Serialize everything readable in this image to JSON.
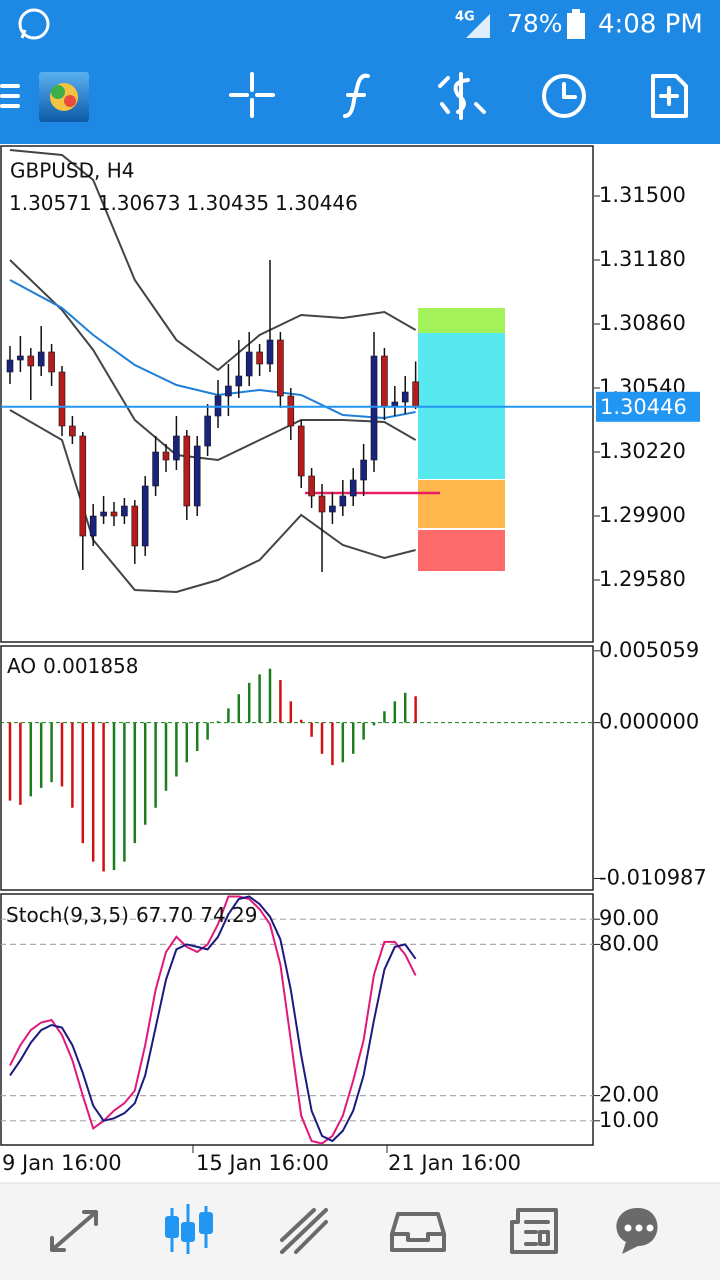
{
  "status_bar": {
    "network": "4G",
    "battery": "78%",
    "time": "4:08 PM"
  },
  "chart_data": [
    {
      "type": "candlestick",
      "title": "GBPUSD, H4",
      "ohlc_labels": [
        1.30571,
        1.30673,
        1.30435,
        1.30446
      ],
      "open": [
        1.3062,
        1.3068,
        1.307,
        1.3065,
        1.3072,
        1.3062,
        1.3035,
        1.303,
        1.298,
        1.299,
        1.2992,
        1.299,
        1.2995,
        1.2975,
        1.3005,
        1.3022,
        1.3018,
        1.303,
        1.2995,
        1.3025,
        1.304,
        1.305,
        1.3055,
        1.306,
        1.3072,
        1.3066,
        1.3078,
        1.305,
        1.3035,
        1.301,
        1.3,
        1.2992,
        1.2995,
        1.3,
        1.3008,
        1.3018,
        1.307,
        1.3045,
        1.3047,
        1.30571
      ],
      "high": [
        1.3075,
        1.308,
        1.3074,
        1.3085,
        1.3076,
        1.3065,
        1.304,
        1.3032,
        1.2996,
        1.3,
        1.2997,
        1.2999,
        1.2998,
        1.301,
        1.303,
        1.3026,
        1.304,
        1.3033,
        1.303,
        1.3046,
        1.3058,
        1.3066,
        1.3078,
        1.3082,
        1.3076,
        1.3118,
        1.3082,
        1.3054,
        1.3038,
        1.3014,
        1.3006,
        1.3002,
        1.3008,
        1.3014,
        1.3026,
        1.3082,
        1.3074,
        1.3055,
        1.306,
        1.30673
      ],
      "low": [
        1.3056,
        1.3062,
        1.3048,
        1.306,
        1.3055,
        1.303,
        1.3026,
        1.2963,
        1.2975,
        1.2986,
        1.2985,
        1.2986,
        1.2966,
        1.297,
        1.3,
        1.3012,
        1.3013,
        1.2988,
        1.299,
        1.302,
        1.3034,
        1.304,
        1.3049,
        1.3055,
        1.306,
        1.3062,
        1.3044,
        1.3028,
        1.3004,
        1.2994,
        1.2962,
        1.2986,
        1.299,
        1.2995,
        1.3,
        1.3012,
        1.3038,
        1.304,
        1.3041,
        1.30435
      ],
      "close": [
        1.3068,
        1.307,
        1.3065,
        1.3072,
        1.3062,
        1.3035,
        1.303,
        1.298,
        1.299,
        1.2992,
        1.299,
        1.2995,
        1.2975,
        1.3005,
        1.3022,
        1.3018,
        1.303,
        1.2995,
        1.3025,
        1.304,
        1.305,
        1.3055,
        1.306,
        1.3072,
        1.3066,
        1.3078,
        1.305,
        1.3035,
        1.301,
        1.3,
        1.2992,
        1.2995,
        1.3,
        1.3008,
        1.3018,
        1.307,
        1.3045,
        1.3047,
        1.3052,
        1.30446
      ],
      "up_color": "#1a237e",
      "down_color": "#b71c1c",
      "wick_color": "#111111",
      "series": [
        {
          "color": "#444444",
          "x": [
            0,
            5,
            8,
            12,
            16,
            20,
            24,
            28,
            32,
            36,
            39
          ],
          "values": [
            1.3173,
            1.31705,
            1.3158,
            1.3108,
            1.3078,
            1.3063,
            1.30805,
            1.30905,
            1.3089,
            1.3092,
            1.3083
          ]
        },
        {
          "color": "#444444",
          "x": [
            0,
            5,
            8,
            12,
            16,
            20,
            24,
            28,
            32,
            36,
            39
          ],
          "values": [
            1.3118,
            1.3093,
            1.3073,
            1.3038,
            1.30205,
            1.3018,
            1.3028,
            1.3038,
            1.3038,
            1.3037,
            1.3028
          ]
        },
        {
          "color": "#444444",
          "x": [
            0,
            5,
            8,
            12,
            16,
            20,
            24,
            28,
            32,
            36,
            39
          ],
          "values": [
            1.3043,
            1.3028,
            1.2978,
            1.2953,
            1.2952,
            1.2958,
            1.2968,
            1.29905,
            1.29755,
            1.2969,
            1.2973
          ]
        },
        {
          "color": "#1e7fd8",
          "x": [
            0,
            5,
            8,
            12,
            16,
            20,
            24,
            28,
            32,
            36,
            39
          ],
          "values": [
            1.3108,
            1.3094,
            1.30805,
            1.30655,
            1.30555,
            1.30505,
            1.3053,
            1.30505,
            1.30405,
            1.3039,
            1.3042
          ]
        }
      ],
      "current_price": 1.30446,
      "current_color": "#2196f3",
      "xlim": [
        -0.96,
        56.15
      ],
      "ylim": [
        1.2927,
        1.3175
      ],
      "yticks": [
        {
          "value": 1.315,
          "label": "1.31500"
        },
        {
          "value": 1.3118,
          "label": "1.31180"
        },
        {
          "value": 1.3086,
          "label": "1.30860"
        },
        {
          "value": 1.3054,
          "label": "1.30540"
        },
        {
          "value": 1.3022,
          "label": "1.30220"
        },
        {
          "value": 1.299,
          "label": "1.29900"
        },
        {
          "value": 1.2958,
          "label": "1.29580"
        }
      ],
      "grid": false
    },
    {
      "type": "bar",
      "title": "AO",
      "current": 0.001858,
      "values": [
        -0.0055,
        -0.0058,
        -0.0052,
        -0.0046,
        -0.0042,
        -0.0045,
        -0.006,
        -0.0085,
        -0.0098,
        -0.0105,
        -0.0104,
        -0.0098,
        -0.0085,
        -0.0072,
        -0.006,
        -0.0048,
        -0.0038,
        -0.0028,
        -0.002,
        -0.0012,
        0.0001,
        0.001,
        0.002,
        0.0028,
        0.0034,
        0.0038,
        0.003,
        0.0015,
        0.0002,
        -0.001,
        -0.0022,
        -0.003,
        -0.0028,
        -0.0022,
        -0.0012,
        -0.0002,
        0.0008,
        0.0015,
        0.0021,
        0.001858
      ],
      "up_color": "#1b7d1b",
      "down_color": "#d01010",
      "xlim": [
        -0.96,
        56.15
      ],
      "ylim": [
        -0.0118,
        0.0054
      ],
      "yticks": [
        0.005059,
        {
          "value": 0,
          "label": "0.000000"
        },
        -0.010987
      ],
      "zero_line": true,
      "grid": false
    },
    {
      "type": "line",
      "title": "Stoch(9,3,5)",
      "current_labels": [
        {
          "value": 67.7,
          "label": "67.70"
        },
        74.29
      ],
      "series": [
        {
          "color": "#e0187a",
          "values": [
            32,
            40,
            46,
            49,
            50,
            44,
            34,
            20,
            7,
            10,
            14,
            17,
            22,
            40,
            62,
            77,
            83,
            79,
            77,
            80,
            88,
            99,
            99,
            98,
            94,
            88,
            72,
            42,
            12,
            2,
            1,
            4,
            12,
            26,
            42,
            68,
            81,
            81,
            76,
            67.7
          ]
        },
        {
          "color": "#1a1a80",
          "values": [
            28,
            34,
            41,
            46,
            48,
            47,
            40,
            29,
            16,
            10,
            11,
            13,
            17,
            28,
            47,
            66,
            78,
            80,
            79,
            78,
            83,
            92,
            98,
            99,
            96,
            91,
            82,
            62,
            36,
            14,
            4,
            2,
            6,
            14,
            28,
            50,
            70,
            79,
            80,
            74.29
          ]
        }
      ],
      "xlim": [
        -0.96,
        56.15
      ],
      "ylim": [
        0,
        100
      ],
      "yticks": [
        {
          "value": 90,
          "label": "90.00"
        },
        {
          "value": 80,
          "label": "80.00"
        },
        {
          "value": 20,
          "label": "20.00"
        },
        {
          "value": 10,
          "label": "10.00"
        }
      ],
      "grid": true,
      "x_labels": [
        "9 Jan 16:00",
        "15 Jan 16:00",
        "21 Jan 16:00"
      ]
    }
  ]
}
